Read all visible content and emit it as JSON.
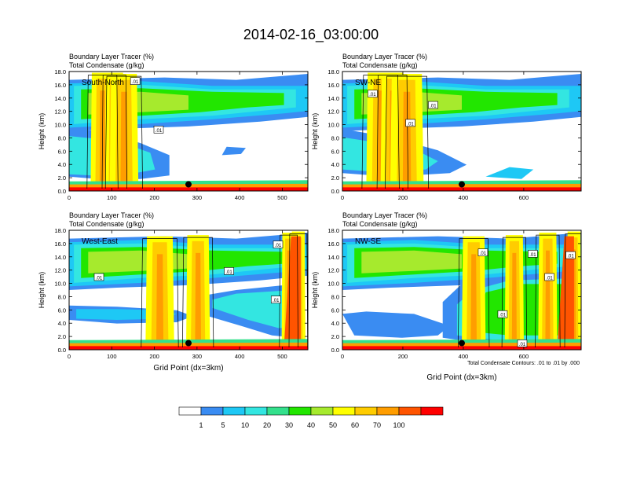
{
  "figure_title": "2014-02-16_03:00:00",
  "footnote": "Total Condensate Contours: .01 to .01 by .000",
  "chart_data": [
    {
      "type": "heatmap",
      "region": "South-North",
      "title_lines": [
        "Boundary Layer Tracer   (%)",
        "Total Condensate   (g/kg)"
      ],
      "ylabel": "Height (km)",
      "xlabel": "",
      "xlim": [
        0,
        560
      ],
      "ylim": [
        0,
        18
      ],
      "xticks": [
        0,
        100,
        200,
        300,
        400,
        500
      ],
      "yticks": [
        "0.0",
        "2.0",
        "4.0",
        "6.0",
        "8.0",
        "10.0",
        "12.0",
        "14.0",
        "16.0",
        "18.0"
      ],
      "marker": {
        "x": 280,
        "y": 1.0
      },
      "contour_labels": [
        {
          "text": ".01",
          "x": 155,
          "y": 16.5
        },
        {
          "text": ".01",
          "x": 210,
          "y": 9.2
        }
      ]
    },
    {
      "type": "heatmap",
      "region": "SW-NE",
      "title_lines": [
        "Boundary Layer Tracer   (%)",
        "Total Condensate   (g/kg)"
      ],
      "ylabel": "Height (km)",
      "xlabel": "",
      "xlim": [
        0,
        790
      ],
      "ylim": [
        0,
        18
      ],
      "xticks": [
        0,
        200,
        400,
        600
      ],
      "yticks": [
        "0.0",
        "2.0",
        "4.0",
        "6.0",
        "8.0",
        "10.0",
        "12.0",
        "14.0",
        "16.0",
        "18.0"
      ],
      "marker": {
        "x": 395,
        "y": 1.0
      },
      "contour_labels": [
        {
          "text": ".01",
          "x": 100,
          "y": 14.6
        },
        {
          "text": ".01",
          "x": 300,
          "y": 12.9
        },
        {
          "text": ".01",
          "x": 225,
          "y": 10.2
        }
      ]
    },
    {
      "type": "heatmap",
      "region": "West-East",
      "title_lines": [
        "Boundary Layer Tracer   (%)",
        "Total Condensate   (g/kg)"
      ],
      "ylabel": "Height (km)",
      "xlabel": "Grid Point (dx=3km)",
      "xlim": [
        0,
        560
      ],
      "ylim": [
        0,
        18
      ],
      "xticks": [
        0,
        100,
        200,
        300,
        400,
        500
      ],
      "yticks": [
        "0.0",
        "2.0",
        "4.0",
        "6.0",
        "8.0",
        "10.0",
        "12.0",
        "14.0",
        "16.0",
        "18.0"
      ],
      "marker": {
        "x": 280,
        "y": 1.0
      },
      "contour_labels": [
        {
          "text": ".01",
          "x": 70,
          "y": 10.9
        },
        {
          "text": ".01",
          "x": 375,
          "y": 11.8
        },
        {
          "text": ".01",
          "x": 490,
          "y": 15.8
        },
        {
          "text": ".01",
          "x": 485,
          "y": 7.5
        }
      ]
    },
    {
      "type": "heatmap",
      "region": "NW-SE",
      "title_lines": [
        "Boundary Layer Tracer   (%)",
        "Total Condensate   (g/kg)"
      ],
      "ylabel": "Height (km)",
      "xlabel": "Grid Point (dx=3km)",
      "xlim": [
        0,
        790
      ],
      "ylim": [
        0,
        18
      ],
      "xticks": [
        0,
        200,
        400,
        600
      ],
      "yticks": [
        "0.0",
        "2.0",
        "4.0",
        "6.0",
        "8.0",
        "10.0",
        "12.0",
        "14.0",
        "16.0",
        "18.0"
      ],
      "marker": {
        "x": 395,
        "y": 1.0
      },
      "contour_labels": [
        {
          "text": ".01",
          "x": 465,
          "y": 14.6
        },
        {
          "text": ".01",
          "x": 630,
          "y": 14.4
        },
        {
          "text": ".01",
          "x": 755,
          "y": 14.2
        },
        {
          "text": ".01",
          "x": 685,
          "y": 10.9
        },
        {
          "text": ".01",
          "x": 530,
          "y": 5.3
        },
        {
          "text": ".01",
          "x": 595,
          "y": 0.9
        }
      ]
    }
  ],
  "colorbar": {
    "colors": [
      "#ffffff",
      "#3a8cf2",
      "#1ec8f5",
      "#33e6e1",
      "#33e08c",
      "#22e600",
      "#a6ea2d",
      "#ffff00",
      "#ffcc00",
      "#ff9d00",
      "#ff5400",
      "#ff0000"
    ],
    "labels": [
      "1",
      "5",
      "10",
      "20",
      "30",
      "40",
      "50",
      "60",
      "70",
      "100"
    ]
  }
}
